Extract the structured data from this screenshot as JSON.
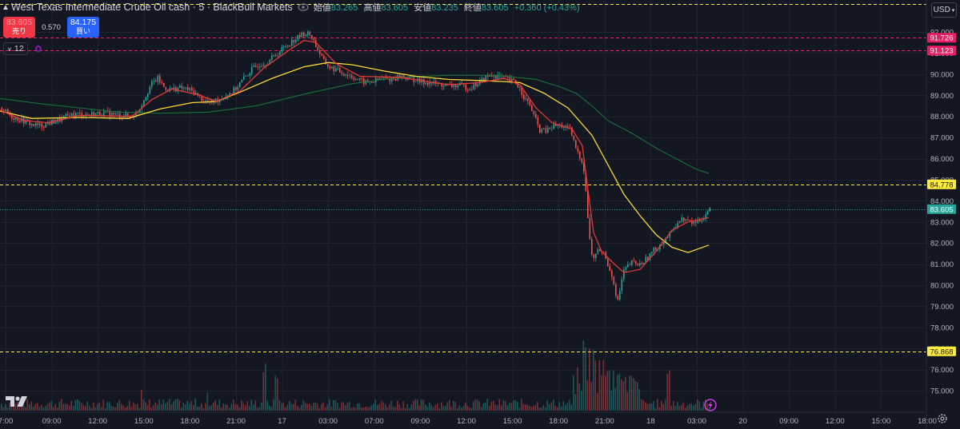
{
  "header": {
    "title": "West Texas Intermediate Crude Oil cash · 5 · BlackBull Markets",
    "open_label": "始値",
    "open_value": "83.265",
    "high_label": "高値",
    "high_value": "83.605",
    "low_label": "安値",
    "low_value": "83.235",
    "close_label": "終値",
    "close_value": "83.605",
    "change": "+0.360 (+0.43%)"
  },
  "trade": {
    "sell_price": "83.605",
    "sell_label": "売り",
    "spread": "0.570",
    "buy_price": "84.175",
    "buy_label": "買い"
  },
  "indicators": {
    "count": "12"
  },
  "currency": "USD",
  "colors": {
    "bg": "#131722",
    "up": "#26a69a",
    "down": "#ef5350",
    "ma_fast": "#e53935",
    "ma_mid": "#fdd835",
    "ma_slow": "#1b7a3a",
    "price_line": "#26a69a",
    "alert": "#e91e63",
    "level": "#ffeb3b"
  },
  "axis": {
    "price_ticks": [
      "92.000",
      "91.000",
      "90.000",
      "89.000",
      "88.000",
      "87.000",
      "86.000",
      "85.000",
      "84.000",
      "83.000",
      "82.000",
      "81.000",
      "80.000",
      "79.000",
      "78.000",
      "77.000",
      "76.000",
      "75.000"
    ],
    "time_ticks": [
      "7:00",
      "09:00",
      "12:00",
      "15:00",
      "18:00",
      "21:00",
      "17",
      "03:00",
      "07:00",
      "09:00",
      "12:00",
      "15:00",
      "18:00",
      "21:00",
      "18",
      "03:00",
      "20",
      "09:00",
      "12:00",
      "15:00",
      "18:00",
      "21:0"
    ]
  },
  "price_labels": {
    "top_line": "",
    "alert_high": "91.726",
    "alert_low": "91.123",
    "level_high": "84.778",
    "current": "83.605",
    "level_low": "76.868"
  },
  "chart_data": {
    "type": "candlestick",
    "symbol": "WTI Crude Oil cash",
    "interval": "5",
    "ylim": [
      75,
      92.5
    ],
    "path": [
      [
        0,
        88.4
      ],
      [
        14,
        88.0
      ],
      [
        28,
        87.8
      ],
      [
        40,
        87.6
      ],
      [
        50,
        87.55
      ],
      [
        62,
        87.7
      ],
      [
        75,
        87.85
      ],
      [
        90,
        88.1
      ],
      [
        110,
        88.1
      ],
      [
        130,
        88.15
      ],
      [
        150,
        88.05
      ],
      [
        165,
        88.0
      ],
      [
        172,
        88.25
      ],
      [
        180,
        88.9
      ],
      [
        188,
        89.5
      ],
      [
        196,
        89.8
      ],
      [
        204,
        89.4
      ],
      [
        212,
        89.25
      ],
      [
        222,
        89.35
      ],
      [
        232,
        89.3
      ],
      [
        242,
        89.15
      ],
      [
        252,
        88.8
      ],
      [
        262,
        88.65
      ],
      [
        272,
        88.8
      ],
      [
        282,
        89.0
      ],
      [
        292,
        89.25
      ],
      [
        302,
        89.7
      ],
      [
        312,
        90.15
      ],
      [
        322,
        90.45
      ],
      [
        332,
        90.55
      ],
      [
        342,
        90.85
      ],
      [
        352,
        91.2
      ],
      [
        362,
        91.5
      ],
      [
        372,
        91.75
      ],
      [
        380,
        91.95
      ],
      [
        388,
        91.85
      ],
      [
        396,
        91.2
      ],
      [
        404,
        90.6
      ],
      [
        412,
        90.3
      ],
      [
        420,
        90.2
      ],
      [
        428,
        90.05
      ],
      [
        436,
        89.95
      ],
      [
        446,
        89.75
      ],
      [
        456,
        89.6
      ],
      [
        466,
        89.65
      ],
      [
        476,
        89.8
      ],
      [
        488,
        89.75
      ],
      [
        500,
        89.9
      ],
      [
        512,
        89.8
      ],
      [
        524,
        89.65
      ],
      [
        536,
        89.6
      ],
      [
        550,
        89.5
      ],
      [
        562,
        89.45
      ],
      [
        574,
        89.45
      ],
      [
        586,
        89.35
      ],
      [
        596,
        89.55
      ],
      [
        606,
        89.85
      ],
      [
        616,
        89.95
      ],
      [
        626,
        89.85
      ],
      [
        636,
        89.7
      ],
      [
        644,
        89.6
      ],
      [
        650,
        89.25
      ],
      [
        656,
        88.8
      ],
      [
        662,
        88.5
      ],
      [
        668,
        87.9
      ],
      [
        674,
        87.35
      ],
      [
        682,
        87.3
      ],
      [
        692,
        87.55
      ],
      [
        702,
        87.55
      ],
      [
        712,
        87.35
      ],
      [
        718,
        86.6
      ],
      [
        722,
        86.2
      ],
      [
        726,
        86.0
      ],
      [
        730,
        85.3
      ],
      [
        734,
        83.2
      ],
      [
        738,
        81.5
      ],
      [
        742,
        81.3
      ],
      [
        748,
        81.7
      ],
      [
        754,
        81.5
      ],
      [
        760,
        80.9
      ],
      [
        766,
        80.3
      ],
      [
        770,
        79.1
      ],
      [
        774,
        79.7
      ],
      [
        778,
        80.6
      ],
      [
        784,
        80.9
      ],
      [
        790,
        81.1
      ],
      [
        798,
        80.95
      ],
      [
        806,
        81.2
      ],
      [
        814,
        81.55
      ],
      [
        822,
        81.85
      ],
      [
        830,
        82.15
      ],
      [
        838,
        82.45
      ],
      [
        846,
        83.0
      ],
      [
        854,
        83.15
      ],
      [
        862,
        82.95
      ],
      [
        870,
        83.0
      ],
      [
        878,
        83.2
      ],
      [
        886,
        83.6
      ]
    ],
    "ma_fast": [
      [
        0,
        88.3
      ],
      [
        30,
        87.8
      ],
      [
        60,
        87.7
      ],
      [
        100,
        88.05
      ],
      [
        165,
        88.0
      ],
      [
        190,
        88.8
      ],
      [
        215,
        89.3
      ],
      [
        250,
        89.0
      ],
      [
        270,
        88.7
      ],
      [
        300,
        89.2
      ],
      [
        330,
        90.3
      ],
      [
        360,
        91.1
      ],
      [
        380,
        91.6
      ],
      [
        395,
        91.5
      ],
      [
        420,
        90.5
      ],
      [
        450,
        89.9
      ],
      [
        500,
        89.85
      ],
      [
        560,
        89.5
      ],
      [
        600,
        89.6
      ],
      [
        630,
        89.8
      ],
      [
        650,
        89.5
      ],
      [
        670,
        88.4
      ],
      [
        690,
        87.7
      ],
      [
        715,
        87.4
      ],
      [
        728,
        86.6
      ],
      [
        735,
        84.5
      ],
      [
        742,
        82.5
      ],
      [
        752,
        81.6
      ],
      [
        768,
        81.0
      ],
      [
        780,
        80.6
      ],
      [
        800,
        80.75
      ],
      [
        820,
        81.6
      ],
      [
        840,
        82.6
      ],
      [
        860,
        83.0
      ],
      [
        886,
        83.2
      ]
    ],
    "ma_mid": [
      [
        0,
        88.25
      ],
      [
        40,
        87.9
      ],
      [
        100,
        87.95
      ],
      [
        160,
        87.9
      ],
      [
        200,
        88.35
      ],
      [
        240,
        88.65
      ],
      [
        270,
        88.7
      ],
      [
        300,
        89.15
      ],
      [
        340,
        89.8
      ],
      [
        380,
        90.35
      ],
      [
        410,
        90.55
      ],
      [
        440,
        90.45
      ],
      [
        480,
        90.15
      ],
      [
        520,
        89.9
      ],
      [
        560,
        89.75
      ],
      [
        600,
        89.7
      ],
      [
        630,
        89.65
      ],
      [
        650,
        89.6
      ],
      [
        680,
        89.1
      ],
      [
        710,
        88.4
      ],
      [
        740,
        87.1
      ],
      [
        760,
        85.7
      ],
      [
        780,
        84.3
      ],
      [
        800,
        83.3
      ],
      [
        820,
        82.4
      ],
      [
        840,
        81.8
      ],
      [
        860,
        81.55
      ],
      [
        886,
        81.9
      ]
    ],
    "ma_slow": [
      [
        0,
        88.85
      ],
      [
        50,
        88.6
      ],
      [
        100,
        88.4
      ],
      [
        150,
        88.2
      ],
      [
        200,
        88.15
      ],
      [
        260,
        88.2
      ],
      [
        320,
        88.5
      ],
      [
        380,
        89.05
      ],
      [
        440,
        89.55
      ],
      [
        500,
        89.85
      ],
      [
        560,
        89.95
      ],
      [
        620,
        89.95
      ],
      [
        670,
        89.75
      ],
      [
        700,
        89.4
      ],
      [
        720,
        89.1
      ],
      [
        740,
        88.5
      ],
      [
        760,
        87.8
      ],
      [
        790,
        87.2
      ],
      [
        820,
        86.5
      ],
      [
        850,
        85.9
      ],
      [
        870,
        85.5
      ],
      [
        886,
        85.3
      ]
    ],
    "volume_spikes": [
      [
        730,
        92
      ],
      [
        736,
        86
      ],
      [
        742,
        78
      ],
      [
        748,
        72
      ],
      [
        754,
        66
      ],
      [
        760,
        60
      ],
      [
        766,
        54
      ],
      [
        722,
        28
      ],
      [
        835,
        58
      ],
      [
        330,
        60
      ],
      [
        345,
        55
      ],
      [
        176,
        28
      ],
      [
        258,
        30
      ]
    ],
    "levels": {
      "alert_high": 91.726,
      "alert_low": 91.123,
      "level_high": 84.778,
      "current": 83.605,
      "level_low": 76.868
    }
  }
}
